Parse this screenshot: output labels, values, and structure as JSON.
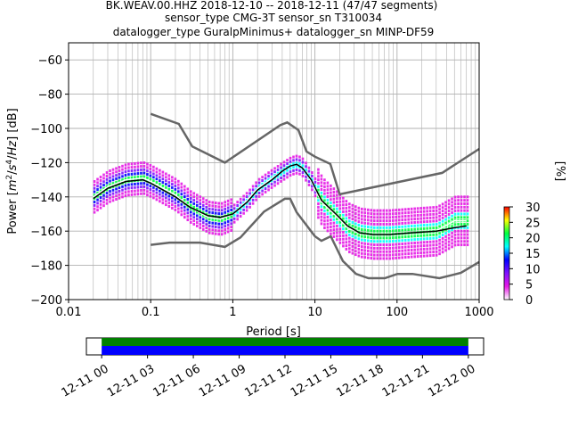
{
  "chart_data": {
    "type": "heatmap",
    "title_lines": [
      "BK.WEAV.00.HHZ   2018-12-10 -- 2018-12-11  (47/47 segments)",
      "sensor_type CMG-3T sensor_sn T310034",
      "datalogger_type GuralpMinimus+ datalogger_sn MINP-DF59"
    ],
    "xlabel": "Period [s]",
    "ylabel": "Power [m²/s⁴/Hz] [dB]",
    "ylabel_parts": [
      "Power [",
      "m",
      "2",
      "/",
      "s",
      "4",
      "/",
      "Hz",
      "] [dB]"
    ],
    "x_scale": "log",
    "xlim": [
      0.01,
      1000
    ],
    "ylim": [
      -200,
      -50
    ],
    "grid": true,
    "x_ticks": [
      {
        "value": 0.01,
        "label": "0.01"
      },
      {
        "value": 0.1,
        "label": "0.1"
      },
      {
        "value": 1,
        "label": "1"
      },
      {
        "value": 10,
        "label": "10"
      },
      {
        "value": 100,
        "label": "100"
      },
      {
        "value": 1000,
        "label": "1000"
      }
    ],
    "y_ticks": [
      {
        "value": -60,
        "label": "−60"
      },
      {
        "value": -80,
        "label": "−80"
      },
      {
        "value": -100,
        "label": "−100"
      },
      {
        "value": -120,
        "label": "−120"
      },
      {
        "value": -140,
        "label": "−140"
      },
      {
        "value": -160,
        "label": "−160"
      },
      {
        "value": -180,
        "label": "−180"
      },
      {
        "value": -200,
        "label": "−200"
      }
    ],
    "noise_model_high": [
      [
        0.1,
        -91.5
      ],
      [
        0.22,
        -97.4
      ],
      [
        0.32,
        -110.5
      ],
      [
        0.8,
        -120
      ],
      [
        3.8,
        -98
      ],
      [
        4.6,
        -96.5
      ],
      [
        6.3,
        -101
      ],
      [
        7.9,
        -113.5
      ],
      [
        10,
        -116.5
      ],
      [
        15.4,
        -120.8
      ],
      [
        20,
        -138.5
      ],
      [
        354.8,
        -126
      ],
      [
        1000,
        -112
      ]
    ],
    "noise_model_low": [
      [
        0.1,
        -168
      ],
      [
        0.17,
        -166.7
      ],
      [
        0.4,
        -166.7
      ],
      [
        0.8,
        -169.2
      ],
      [
        1.24,
        -163.7
      ],
      [
        2.4,
        -148.6
      ],
      [
        4.3,
        -141.1
      ],
      [
        5,
        -141.1
      ],
      [
        6,
        -149
      ],
      [
        10,
        -163
      ],
      [
        12,
        -165.7
      ],
      [
        15.6,
        -163
      ],
      [
        21.9,
        -177.5
      ],
      [
        31.6,
        -185
      ],
      [
        45,
        -187.5
      ],
      [
        70.8,
        -187.5
      ],
      [
        101,
        -185
      ],
      [
        154,
        -185
      ],
      [
        328,
        -187.5
      ],
      [
        600,
        -184.4
      ],
      [
        1000,
        -178
      ]
    ],
    "mean_psd": [
      [
        0.02,
        -141
      ],
      [
        0.03,
        -135
      ],
      [
        0.05,
        -131
      ],
      [
        0.08,
        -130
      ],
      [
        0.1,
        -132
      ],
      [
        0.2,
        -140
      ],
      [
        0.3,
        -146
      ],
      [
        0.5,
        -151
      ],
      [
        0.7,
        -152
      ],
      [
        1,
        -150
      ],
      [
        1.5,
        -143
      ],
      [
        2,
        -136
      ],
      [
        3,
        -130
      ],
      [
        4,
        -125
      ],
      [
        5,
        -122
      ],
      [
        6,
        -121
      ],
      [
        7,
        -123
      ],
      [
        9,
        -130
      ],
      [
        12,
        -142
      ],
      [
        18,
        -150
      ],
      [
        25,
        -157
      ],
      [
        35,
        -161
      ],
      [
        50,
        -162
      ],
      [
        80,
        -162
      ],
      [
        150,
        -161
      ],
      [
        300,
        -160
      ],
      [
        500,
        -158
      ],
      [
        700,
        -157
      ]
    ],
    "mode_psd": [
      [
        0.02,
        -140
      ],
      [
        0.03,
        -134
      ],
      [
        0.05,
        -130
      ],
      [
        0.08,
        -129
      ],
      [
        0.1,
        -131
      ],
      [
        0.2,
        -139
      ],
      [
        0.3,
        -146
      ],
      [
        0.5,
        -152
      ],
      [
        0.7,
        -153
      ],
      [
        1,
        -150
      ],
      [
        1.5,
        -142
      ],
      [
        2,
        -135
      ],
      [
        3,
        -129
      ],
      [
        4,
        -125
      ],
      [
        5,
        -122
      ],
      [
        6,
        -121
      ],
      [
        7,
        -123
      ],
      [
        9,
        -131
      ],
      [
        12,
        -143
      ],
      [
        18,
        -151
      ],
      [
        25,
        -158
      ],
      [
        35,
        -161
      ],
      [
        50,
        -162
      ],
      [
        80,
        -162
      ],
      [
        150,
        -161
      ],
      [
        300,
        -160
      ],
      [
        500,
        -154
      ],
      [
        700,
        -154
      ]
    ],
    "colorbar": {
      "label": "[%]",
      "range": [
        0,
        30
      ],
      "ticks": [
        {
          "value": 0,
          "label": "0"
        },
        {
          "value": 5,
          "label": "5"
        },
        {
          "value": 10,
          "label": "10"
        },
        {
          "value": 15,
          "label": "15"
        },
        {
          "value": 20,
          "label": "20"
        },
        {
          "value": 25,
          "label": "25"
        },
        {
          "value": 30,
          "label": "30"
        }
      ],
      "colors": [
        "#ffffff",
        "#e619e6",
        "#8010ff",
        "#0000ff",
        "#00ffff",
        "#00ff40",
        "#ffff00",
        "#ff0000"
      ]
    },
    "coverage": {
      "range": [
        "12-10 23:00",
        "12-12 01:00"
      ],
      "ticks": [
        "12-11 00",
        "12-11 03",
        "12-11 06",
        "12-11 09",
        "12-11 12",
        "12-11 15",
        "12-11 18",
        "12-11 21",
        "12-12 00"
      ],
      "covered": [
        "12-11 00:00",
        "12-12 00:00"
      ],
      "colors": {
        "top": "#008000",
        "bottom": "#0000ff"
      }
    }
  }
}
